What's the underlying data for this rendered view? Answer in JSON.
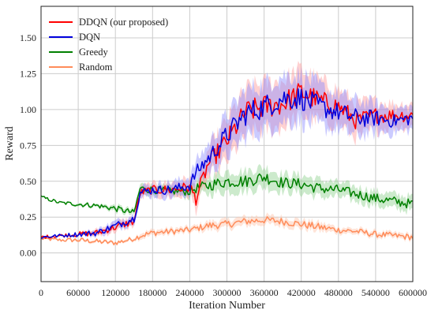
{
  "chart_data": {
    "type": "line",
    "title": "",
    "xlabel": "Iteration Number",
    "ylabel": "Reward",
    "xlim": [
      0,
      600000
    ],
    "ylim": [
      -0.2,
      1.72
    ],
    "x_ticks": [
      0,
      60000,
      120000,
      180000,
      240000,
      300000,
      360000,
      420000,
      480000,
      540000,
      600000
    ],
    "y_ticks": [
      0.0,
      0.25,
      0.5,
      0.75,
      1.0,
      1.25,
      1.5
    ],
    "y_tick_labels": [
      "0.00",
      "0.25",
      "0.50",
      "0.75",
      "1.00",
      "1.25",
      "1.50"
    ],
    "grid": true,
    "legend_position": "top-left",
    "x": [
      0,
      30000,
      60000,
      90000,
      120000,
      150000,
      160000,
      180000,
      210000,
      240000,
      250000,
      270000,
      300000,
      330000,
      360000,
      390000,
      420000,
      450000,
      480000,
      510000,
      540000,
      570000,
      600000
    ],
    "series": [
      {
        "name": "DDQN (our proposed)",
        "color": "#ff0000",
        "band_color": "#ff9a9a",
        "values": [
          0.11,
          0.12,
          0.13,
          0.14,
          0.18,
          0.22,
          0.42,
          0.44,
          0.44,
          0.46,
          0.38,
          0.62,
          0.78,
          0.98,
          1.02,
          1.04,
          1.12,
          1.06,
          1.02,
          0.92,
          0.96,
          0.96,
          0.96
        ],
        "band": [
          0.0,
          0.0,
          0.01,
          0.02,
          0.03,
          0.03,
          0.04,
          0.04,
          0.05,
          0.06,
          0.08,
          0.1,
          0.14,
          0.16,
          0.16,
          0.16,
          0.16,
          0.14,
          0.12,
          0.12,
          0.1,
          0.08,
          0.08
        ]
      },
      {
        "name": "DQN",
        "color": "#0000dd",
        "band_color": "#8c8cff",
        "values": [
          0.11,
          0.12,
          0.13,
          0.14,
          0.19,
          0.24,
          0.42,
          0.44,
          0.44,
          0.47,
          0.56,
          0.66,
          0.82,
          0.97,
          1.02,
          1.08,
          1.08,
          1.02,
          0.98,
          0.94,
          0.94,
          0.92,
          0.94
        ],
        "band": [
          0.0,
          0.0,
          0.01,
          0.02,
          0.03,
          0.03,
          0.04,
          0.04,
          0.05,
          0.06,
          0.08,
          0.1,
          0.14,
          0.16,
          0.16,
          0.16,
          0.16,
          0.14,
          0.12,
          0.12,
          0.1,
          0.08,
          0.08
        ]
      },
      {
        "name": "Greedy",
        "color": "#008000",
        "band_color": "#8fd08f",
        "values": [
          0.39,
          0.35,
          0.34,
          0.33,
          0.31,
          0.28,
          0.45,
          0.44,
          0.43,
          0.43,
          0.45,
          0.47,
          0.5,
          0.5,
          0.53,
          0.49,
          0.48,
          0.45,
          0.44,
          0.41,
          0.38,
          0.36,
          0.34
        ],
        "band": [
          0.0,
          0.0,
          0.01,
          0.01,
          0.02,
          0.02,
          0.03,
          0.03,
          0.03,
          0.04,
          0.05,
          0.06,
          0.07,
          0.07,
          0.07,
          0.06,
          0.06,
          0.06,
          0.05,
          0.05,
          0.05,
          0.05,
          0.05
        ]
      },
      {
        "name": "Random",
        "color": "#ff8c5a",
        "band_color": "#ffc4a8",
        "values": [
          0.1,
          0.09,
          0.09,
          0.08,
          0.07,
          0.1,
          0.12,
          0.14,
          0.15,
          0.16,
          0.17,
          0.19,
          0.2,
          0.22,
          0.23,
          0.22,
          0.2,
          0.18,
          0.16,
          0.15,
          0.13,
          0.12,
          0.11
        ],
        "band": [
          0.0,
          0.0,
          0.01,
          0.01,
          0.01,
          0.01,
          0.02,
          0.02,
          0.02,
          0.02,
          0.02,
          0.03,
          0.03,
          0.03,
          0.03,
          0.03,
          0.03,
          0.03,
          0.02,
          0.02,
          0.02,
          0.02,
          0.02
        ]
      }
    ]
  }
}
